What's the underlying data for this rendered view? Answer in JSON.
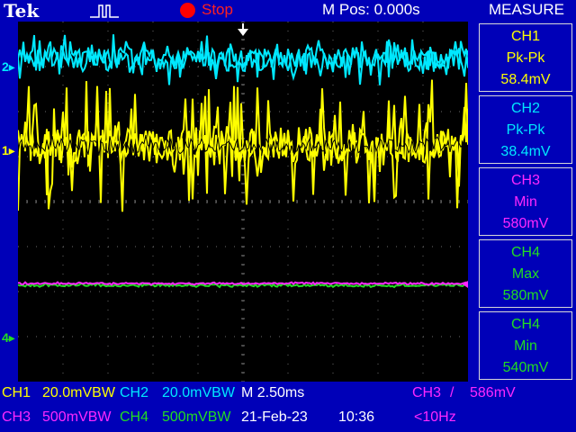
{
  "header": {
    "brand": "Tek",
    "status": "Stop",
    "position": "M Pos: 0.000s"
  },
  "colors": {
    "ch1": "#ffff00",
    "ch2": "#00e8ff",
    "ch3": "#ff28ff",
    "ch4": "#22dd22",
    "status": "#ff0000",
    "frame": "#0000b8"
  },
  "markers": {
    "ch2": "2",
    "ch1": "1",
    "ch4": "4"
  },
  "measure": {
    "title": "MEASURE",
    "items": [
      {
        "source": "CH1",
        "type": "Pk-Pk",
        "value": "58.4mV"
      },
      {
        "source": "CH2",
        "type": "Pk-Pk",
        "value": "38.4mV"
      },
      {
        "source": "CH3",
        "type": "Min",
        "value": "580mV"
      },
      {
        "source": "CH4",
        "type": "Max",
        "value": "580mV"
      },
      {
        "source": "CH4",
        "type": "Min",
        "value": "540mV"
      }
    ]
  },
  "footer": {
    "ch1_label": "CH1",
    "ch1_scale": "20.0mVBW",
    "ch2_label": "CH2",
    "ch2_scale": "20.0mVBW",
    "timebase": "M 2.50ms",
    "trigger_source": "CH3",
    "trigger_slope": "/",
    "trigger_level": "586mV",
    "ch3_label": "CH3",
    "ch3_scale": "500mVBW",
    "ch4_label": "CH4",
    "ch4_scale": "500mVBW",
    "date": "21-Feb-23",
    "time": "10:36",
    "trigger_freq": "<10Hz"
  }
}
